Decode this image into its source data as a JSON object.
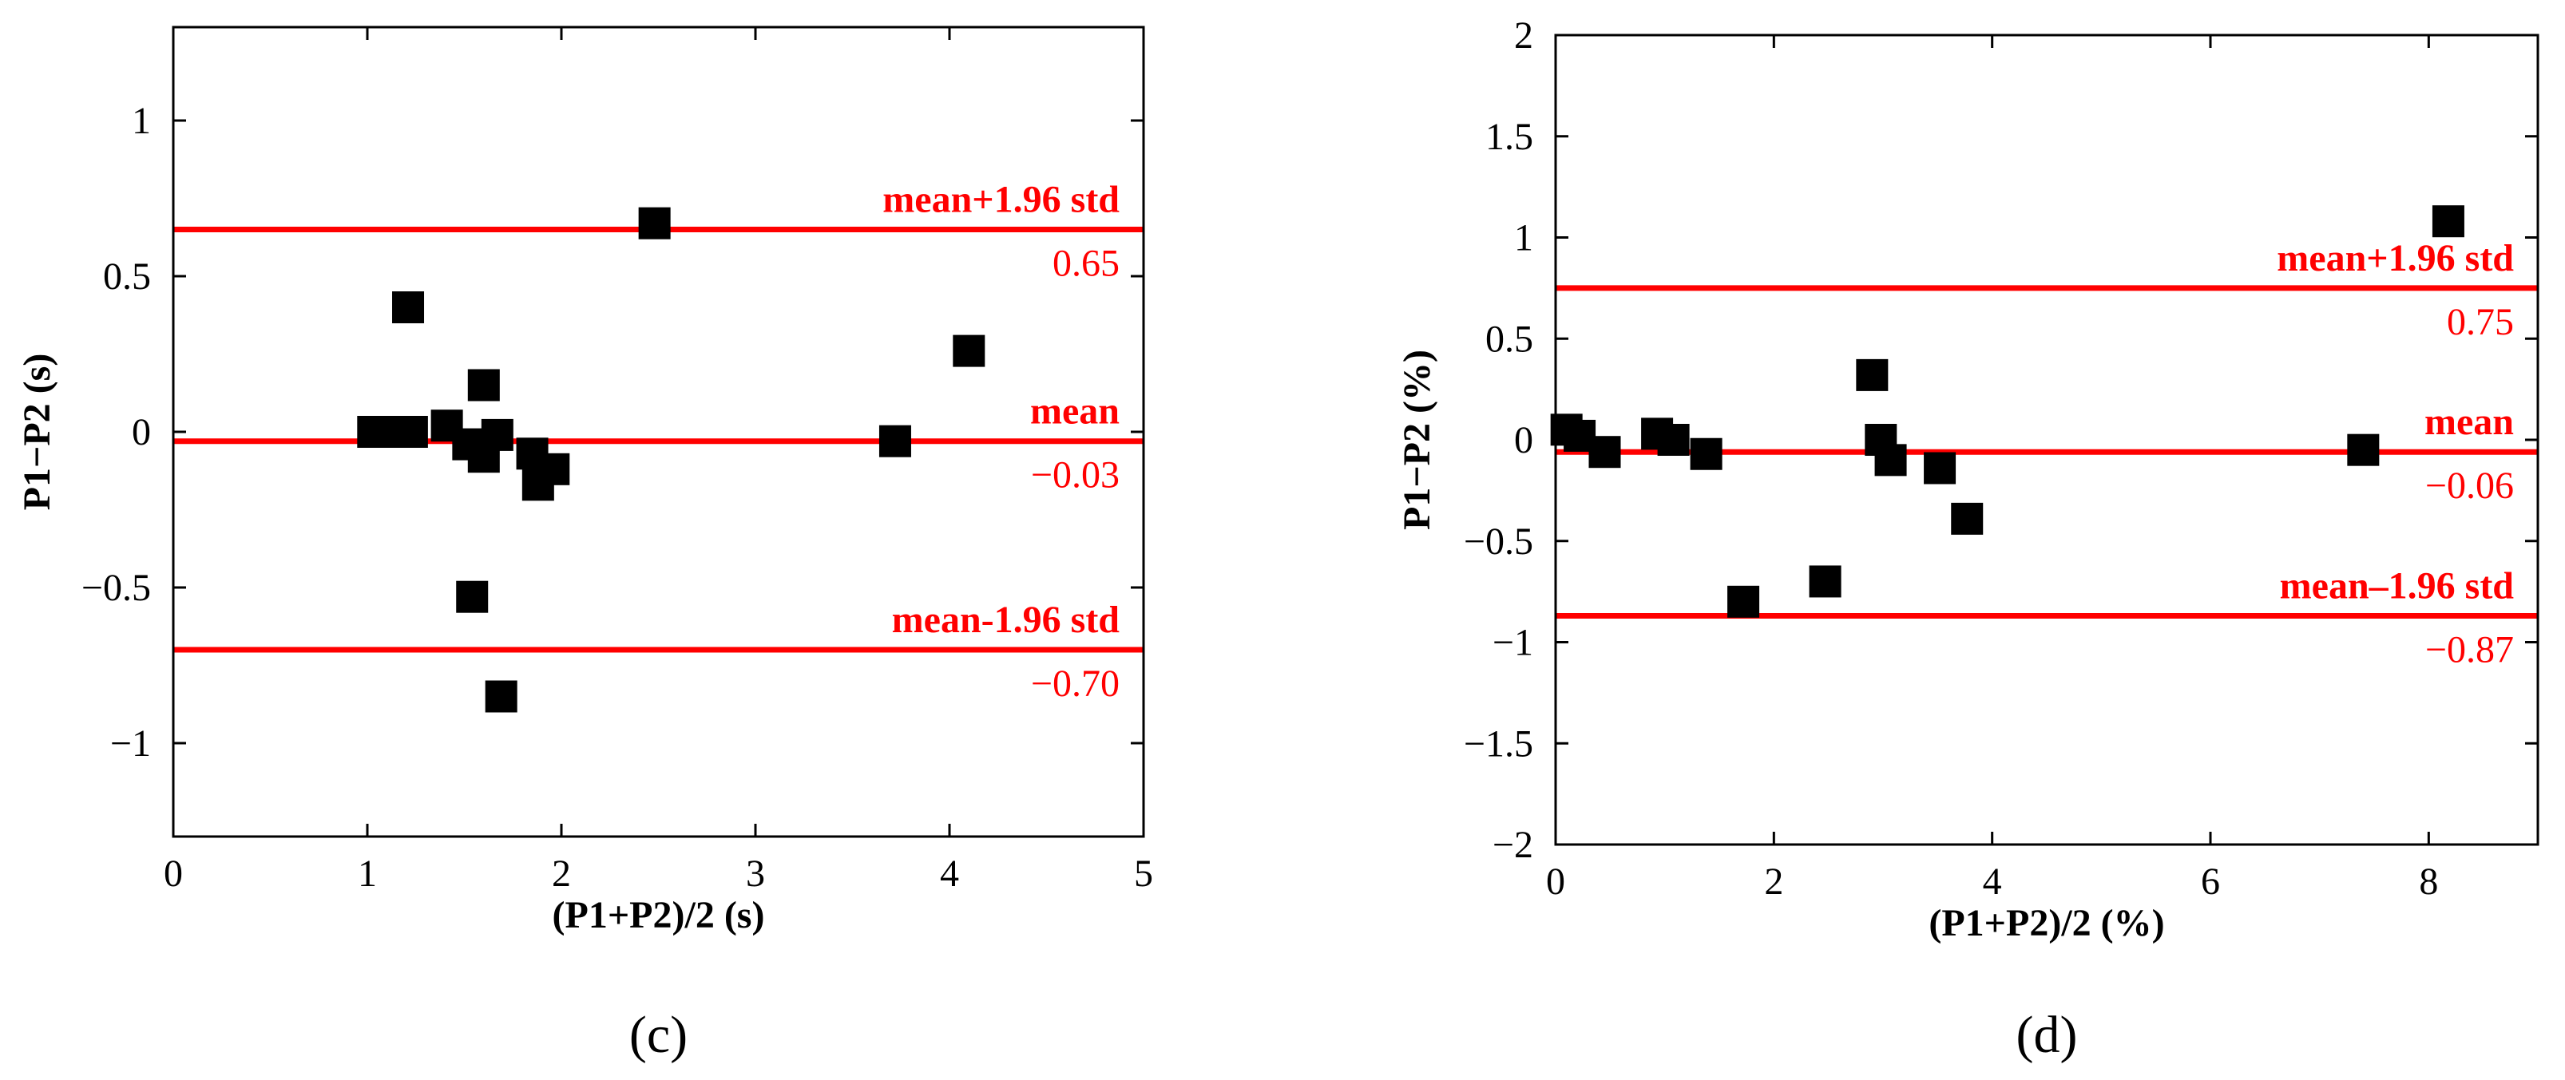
{
  "colors": {
    "reference": "#ff0000",
    "points": "#000000",
    "axes": "#000000"
  },
  "chart_data": [
    {
      "type": "scatter",
      "panel_label": "(c)",
      "xlabel": "(P1+P2)/2 (s)",
      "ylabel": "P1−P2 (s)",
      "xlim": [
        0,
        5
      ],
      "ylim": [
        -1.3,
        1.3
      ],
      "xticks": [
        0,
        1,
        2,
        3,
        4,
        5
      ],
      "xtick_labels": [
        "0",
        "1",
        "2",
        "3",
        "4",
        "5"
      ],
      "yticks": [
        -1,
        -0.5,
        0,
        0.5,
        1
      ],
      "ytick_labels": [
        "−1",
        "−0.5",
        "0",
        "0.5",
        "1"
      ],
      "reference_lines": [
        {
          "name": "upper",
          "y": 0.65,
          "label": "mean+1.96  std",
          "value_label": "0.65"
        },
        {
          "name": "mean",
          "y": -0.03,
          "label": "mean",
          "value_label": "−0.03"
        },
        {
          "name": "lower",
          "y": -0.7,
          "label": "mean-1.96  std",
          "value_label": "−0.70"
        }
      ],
      "points": [
        {
          "x": 1.03,
          "y": 0.0
        },
        {
          "x": 1.1,
          "y": 0.0
        },
        {
          "x": 1.17,
          "y": 0.0
        },
        {
          "x": 1.23,
          "y": 0.0
        },
        {
          "x": 1.21,
          "y": 0.4
        },
        {
          "x": 1.41,
          "y": 0.02
        },
        {
          "x": 1.52,
          "y": -0.04
        },
        {
          "x": 1.54,
          "y": -0.53
        },
        {
          "x": 1.6,
          "y": 0.15
        },
        {
          "x": 1.6,
          "y": -0.08
        },
        {
          "x": 1.67,
          "y": -0.01
        },
        {
          "x": 1.69,
          "y": -0.85
        },
        {
          "x": 1.85,
          "y": -0.07
        },
        {
          "x": 1.88,
          "y": -0.17
        },
        {
          "x": 1.96,
          "y": -0.12
        },
        {
          "x": 2.48,
          "y": 0.67
        },
        {
          "x": 3.72,
          "y": -0.03
        },
        {
          "x": 4.1,
          "y": 0.26
        }
      ]
    },
    {
      "type": "scatter",
      "panel_label": "(d)",
      "xlabel": "(P1+P2)/2 (%)",
      "ylabel": "P1−P2 (%)",
      "xlim": [
        0,
        9
      ],
      "ylim": [
        -2,
        2
      ],
      "xticks": [
        0,
        2,
        4,
        6,
        8
      ],
      "xtick_labels": [
        "0",
        "2",
        "4",
        "6",
        "8"
      ],
      "yticks": [
        -2,
        -1.5,
        -1,
        -0.5,
        0,
        0.5,
        1,
        1.5,
        2
      ],
      "ytick_labels": [
        "−2",
        "−1.5",
        "−1",
        "−0.5",
        "0",
        "0.5",
        "1",
        "1.5",
        "2"
      ],
      "reference_lines": [
        {
          "name": "upper",
          "y": 0.75,
          "label": "mean+1.96  std",
          "value_label": "0.75"
        },
        {
          "name": "mean",
          "y": -0.06,
          "label": "mean",
          "value_label": "−0.06"
        },
        {
          "name": "lower",
          "y": -0.87,
          "label": "mean–1.96  std",
          "value_label": "−0.87"
        }
      ],
      "points": [
        {
          "x": 0.1,
          "y": 0.05
        },
        {
          "x": 0.22,
          "y": 0.02
        },
        {
          "x": 0.45,
          "y": -0.06
        },
        {
          "x": 0.93,
          "y": 0.03
        },
        {
          "x": 1.08,
          "y": 0.0
        },
        {
          "x": 1.38,
          "y": -0.07
        },
        {
          "x": 1.72,
          "y": -0.8
        },
        {
          "x": 2.47,
          "y": -0.7
        },
        {
          "x": 2.9,
          "y": 0.32
        },
        {
          "x": 2.98,
          "y": 0.0
        },
        {
          "x": 3.07,
          "y": -0.1
        },
        {
          "x": 3.52,
          "y": -0.14
        },
        {
          "x": 3.77,
          "y": -0.39
        },
        {
          "x": 7.4,
          "y": -0.05
        },
        {
          "x": 8.18,
          "y": 1.08
        }
      ]
    }
  ]
}
